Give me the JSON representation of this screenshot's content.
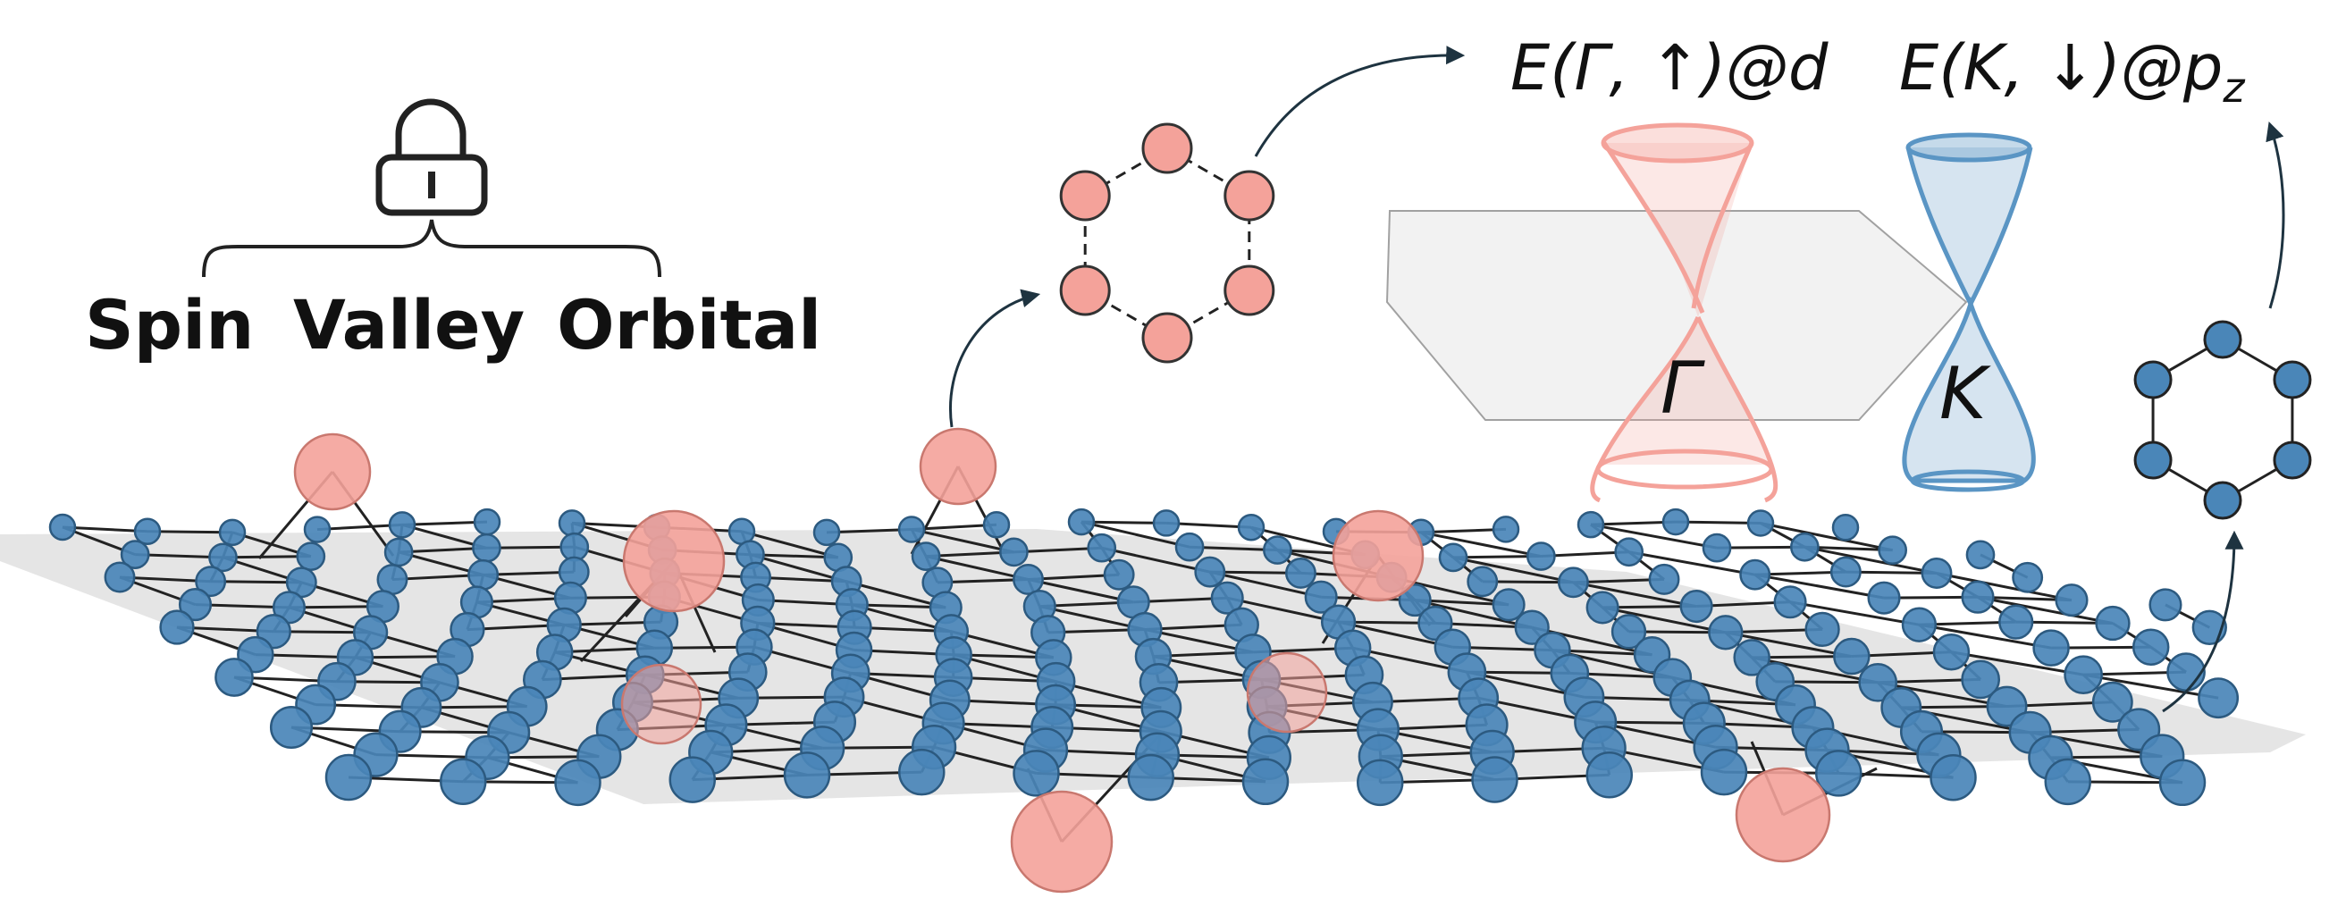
{
  "lock": {
    "icon": "lock-icon",
    "labels": [
      "Spin",
      "Valley",
      "Orbital"
    ]
  },
  "equations": {
    "gamma": {
      "prefix": "E(",
      "symbol": "Γ",
      "middle": ", ↑)@d"
    },
    "k": {
      "prefix": "E(K, ↓)@p",
      "subscript": "z"
    }
  },
  "cones": {
    "gamma_label": "Γ",
    "k_label": "K"
  },
  "colors": {
    "pink_atom": "#f4a29a",
    "blue_atom": "#4a86b8",
    "plane": "#dcdcdc",
    "gamma_cone": "#f4a29a",
    "k_cone": "#5a95c4",
    "arrow": "#1e3340"
  }
}
